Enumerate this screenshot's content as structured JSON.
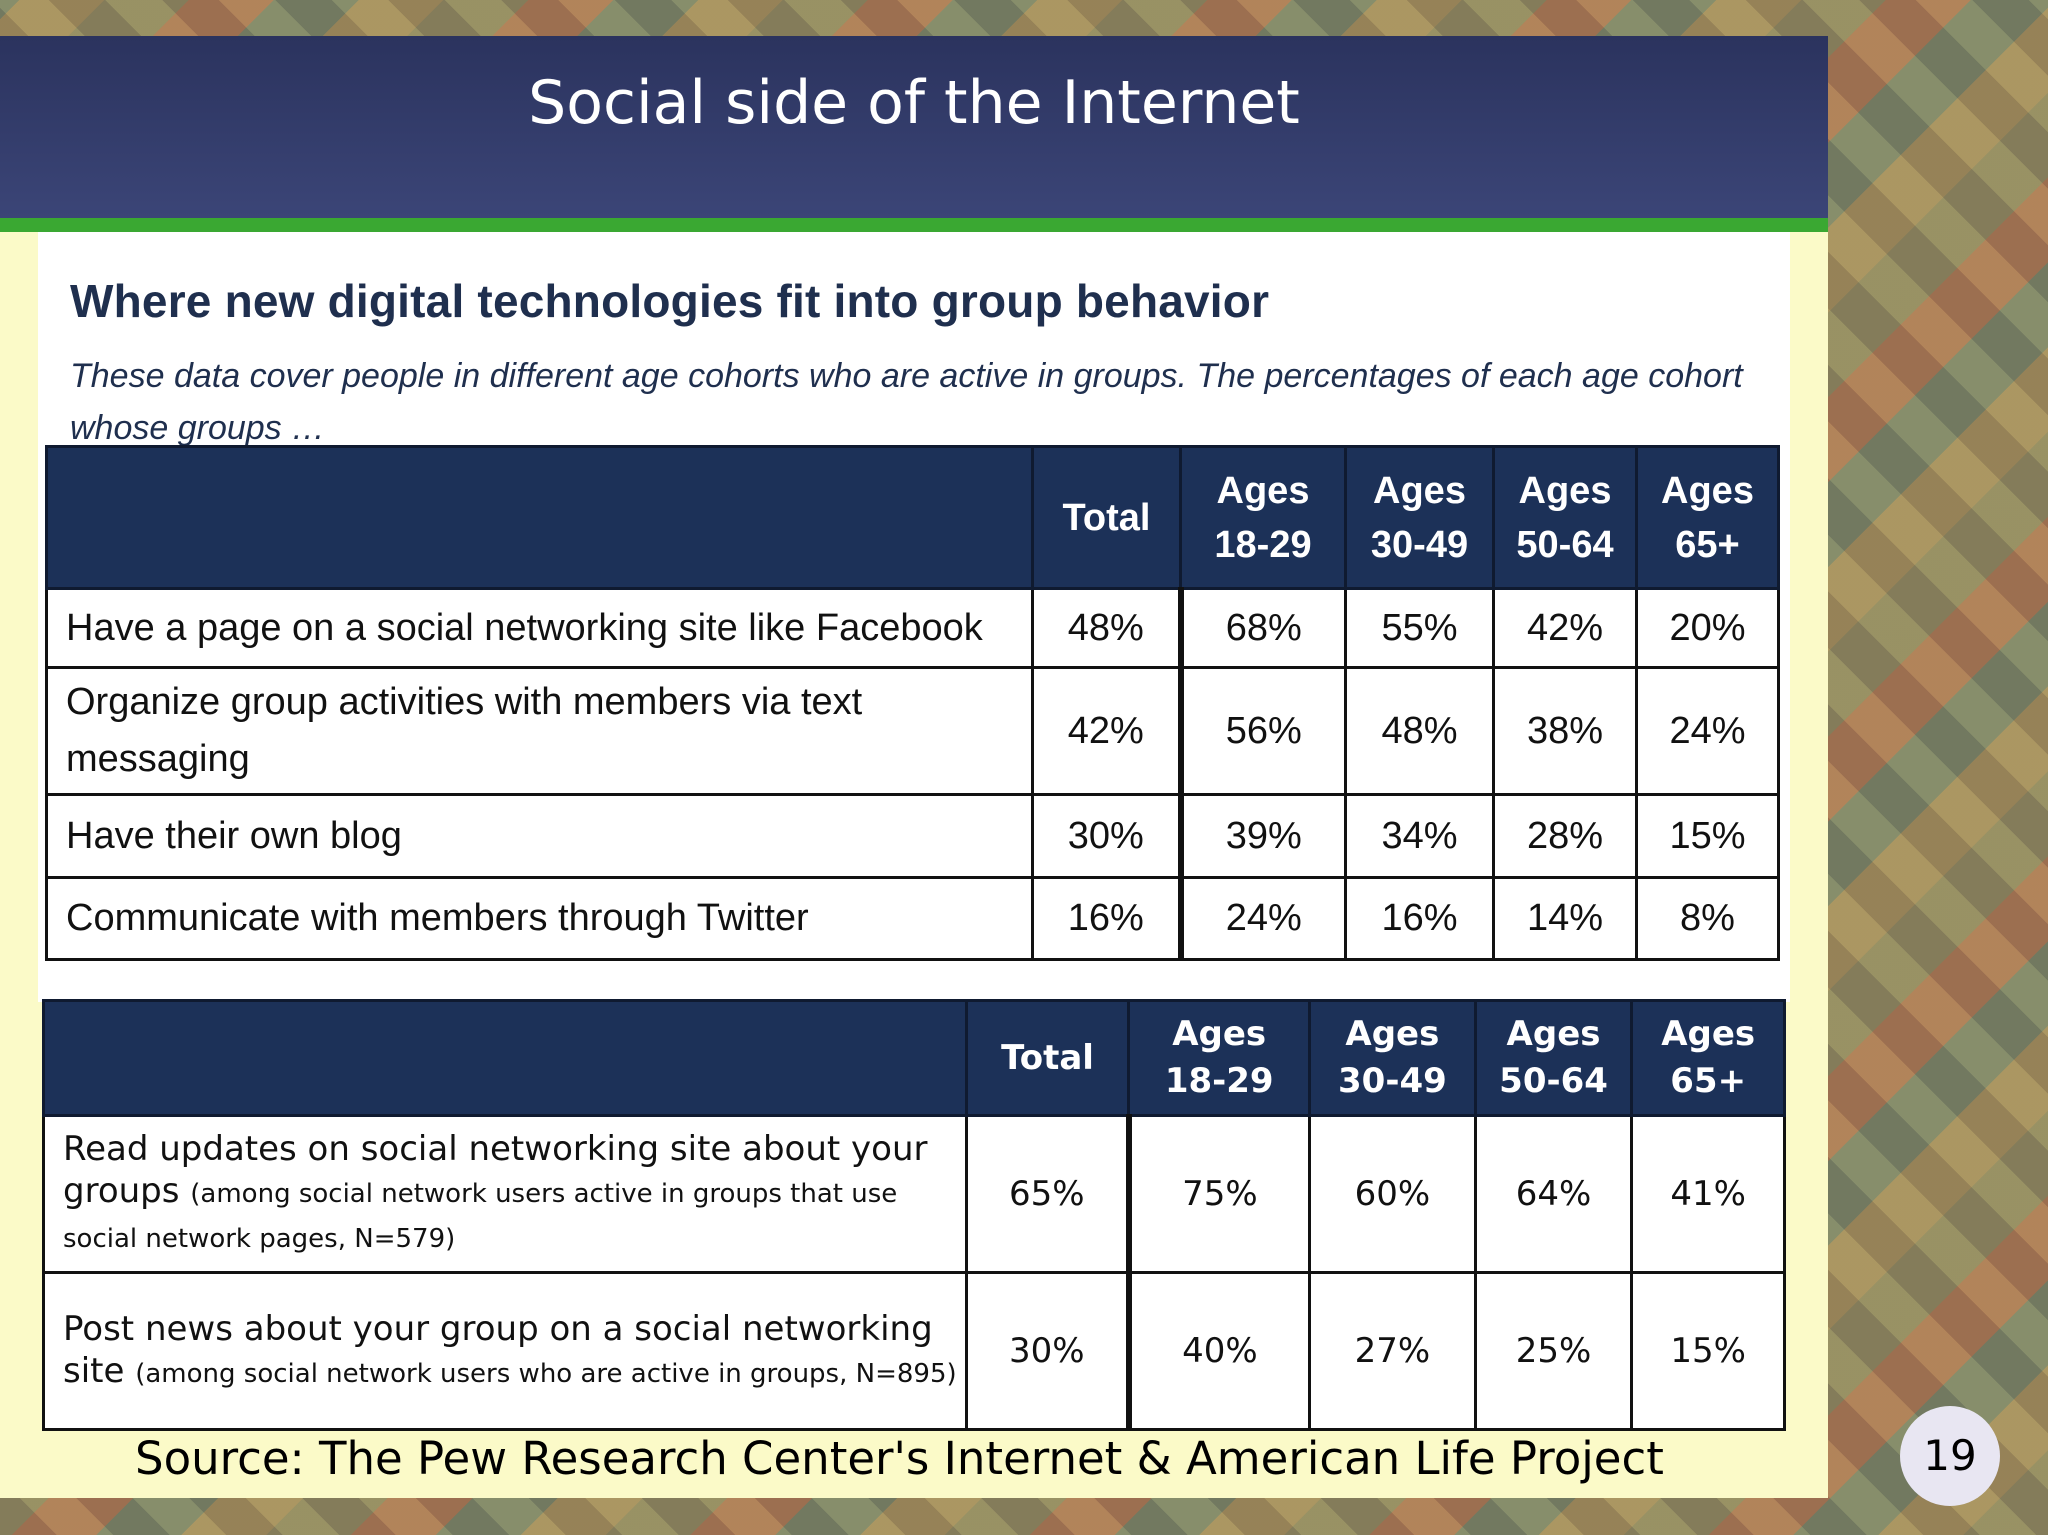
{
  "slide": {
    "title": "Social side of the Internet",
    "page_number": "19",
    "source": "Source:  The Pew Research Center's Internet & American Life Project"
  },
  "panel": {
    "title": "Where new digital technologies fit into group behavior",
    "subtitle": "These data cover people in different age cohorts who are active in groups. The percentages of each age cohort whose groups …"
  },
  "table1": {
    "headers": [
      "",
      "Total",
      "Ages 18-29",
      "Ages 30-49",
      "Ages 50-64",
      "Ages 65+"
    ],
    "header_lines": [
      [
        "",
        ""
      ],
      [
        "Total",
        ""
      ],
      [
        "Ages",
        "18-29"
      ],
      [
        "Ages",
        "30-49"
      ],
      [
        "Ages",
        "50-64"
      ],
      [
        "Ages",
        "65+"
      ]
    ],
    "rows": [
      {
        "label": "Have a page on a social networking site like Facebook",
        "values": [
          "48%",
          "68%",
          "55%",
          "42%",
          "20%"
        ]
      },
      {
        "label": "Organize group activities with members via text messaging",
        "values": [
          "42%",
          "56%",
          "48%",
          "38%",
          "24%"
        ]
      },
      {
        "label": "Have their own blog",
        "values": [
          "30%",
          "39%",
          "34%",
          "28%",
          "15%"
        ]
      },
      {
        "label": "Communicate with members through Twitter",
        "values": [
          "16%",
          "24%",
          "16%",
          "14%",
          "8%"
        ]
      }
    ]
  },
  "table2": {
    "header_lines": [
      [
        "",
        ""
      ],
      [
        "Total",
        ""
      ],
      [
        "Ages",
        "18-29"
      ],
      [
        "Ages",
        "30-49"
      ],
      [
        "Ages",
        "50-64"
      ],
      [
        "Ages",
        "65+"
      ]
    ],
    "rows": [
      {
        "label": "Read updates on social networking site about your groups",
        "note": "(among social network users active in groups that use social network pages, N=579)",
        "values": [
          "65%",
          "75%",
          "60%",
          "64%",
          "41%"
        ]
      },
      {
        "label": "Post news about your group on a social networking site",
        "note": "(among social network users who are active in groups, N=895)",
        "values": [
          "30%",
          "40%",
          "27%",
          "25%",
          "15%"
        ]
      }
    ]
  }
}
